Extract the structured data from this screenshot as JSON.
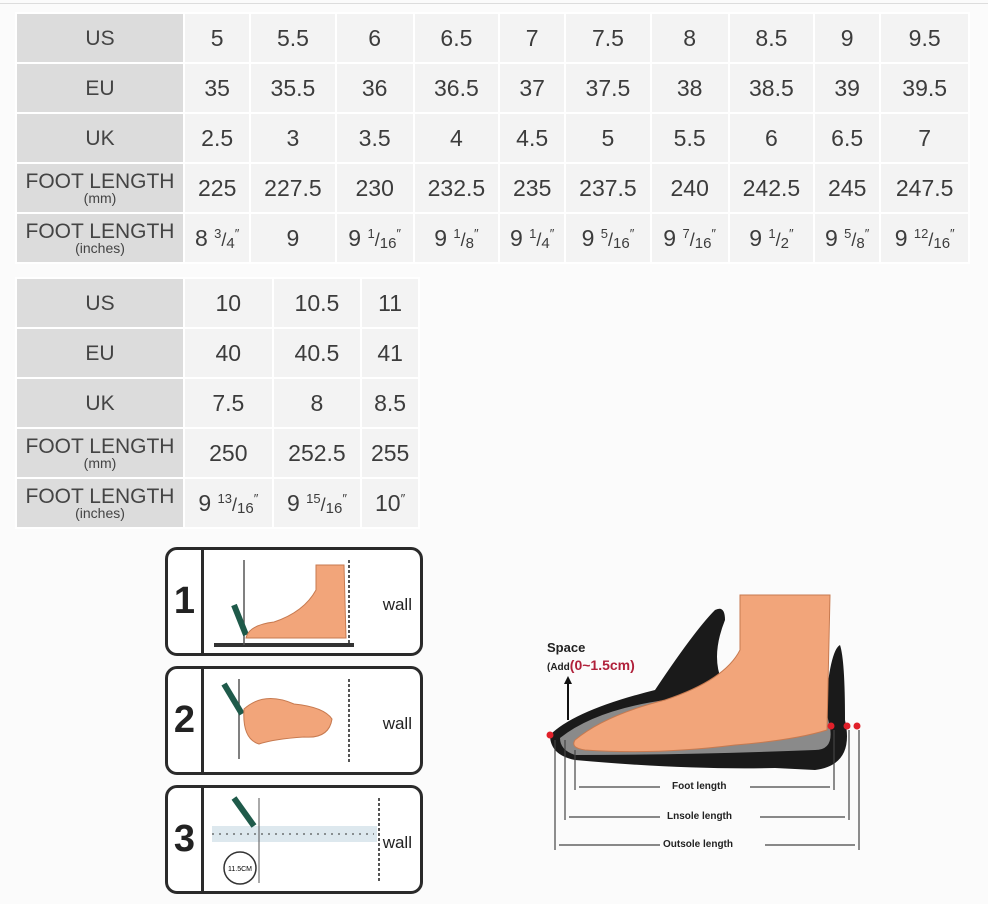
{
  "table1": {
    "labels": {
      "us": "US",
      "eu": "EU",
      "uk": "UK",
      "foot_mm": "FOOT LENGTH",
      "mm_unit": "(mm)",
      "foot_in": "FOOT LENGTH",
      "in_unit": "(inches)"
    },
    "us": [
      "5",
      "5.5",
      "6",
      "6.5",
      "7",
      "7.5",
      "8",
      "8.5",
      "9",
      "9.5"
    ],
    "eu": [
      "35",
      "35.5",
      "36",
      "36.5",
      "37",
      "37.5",
      "38",
      "38.5",
      "39",
      "39.5"
    ],
    "uk": [
      "2.5",
      "3",
      "3.5",
      "4",
      "4.5",
      "5",
      "5.5",
      "6",
      "6.5",
      "7"
    ],
    "mm": [
      "225",
      "227.5",
      "230",
      "232.5",
      "235",
      "237.5",
      "240",
      "242.5",
      "245",
      "247.5"
    ],
    "inches": [
      {
        "w": "8",
        "n": "3",
        "d": "4",
        "m": "″"
      },
      {
        "w": "9",
        "n": "",
        "d": "",
        "m": ""
      },
      {
        "w": "9",
        "n": "1",
        "d": "16",
        "m": "″"
      },
      {
        "w": "9",
        "n": "1",
        "d": "8",
        "m": "″"
      },
      {
        "w": "9",
        "n": "1",
        "d": "4",
        "m": "″"
      },
      {
        "w": "9",
        "n": "5",
        "d": "16",
        "m": "″"
      },
      {
        "w": "9",
        "n": "7",
        "d": "16",
        "m": "″"
      },
      {
        "w": "9",
        "n": "1",
        "d": "2",
        "m": "″"
      },
      {
        "w": "9",
        "n": "5",
        "d": "8",
        "m": "″"
      },
      {
        "w": "9",
        "n": "12",
        "d": "16",
        "m": "″"
      }
    ]
  },
  "table2": {
    "labels": {
      "us": "US",
      "eu": "EU",
      "uk": "UK",
      "foot_mm": "FOOT LENGTH",
      "mm_unit": "(mm)",
      "foot_in": "FOOT LENGTH",
      "in_unit": "(inches)"
    },
    "us": [
      "10",
      "10.5",
      "11"
    ],
    "eu": [
      "40",
      "40.5",
      "41"
    ],
    "uk": [
      "7.5",
      "8",
      "8.5"
    ],
    "mm": [
      "250",
      "252.5",
      "255"
    ],
    "inches": [
      {
        "w": "9",
        "n": "13",
        "d": "16",
        "m": "″"
      },
      {
        "w": "9",
        "n": "15",
        "d": "16",
        "m": "″"
      },
      {
        "w": "10",
        "n": "",
        "d": "",
        "m": "″"
      }
    ]
  },
  "steps": [
    {
      "num": "1",
      "wall": "wall"
    },
    {
      "num": "2",
      "wall": "wall"
    },
    {
      "num": "3",
      "wall": "wall",
      "badge": "11.5CM"
    }
  ],
  "shoe": {
    "space": "Space",
    "add": "(Add",
    "range": "(0~1.5cm)",
    "foot_length": "Foot length",
    "insole_length": "Lnsole length",
    "outsole_length": "Outsole length"
  },
  "colors": {
    "label_bg": "#dcdcdc",
    "cell_bg": "#f3f3f3",
    "skin": "#f2a57a",
    "accent_red": "#b0203a"
  }
}
